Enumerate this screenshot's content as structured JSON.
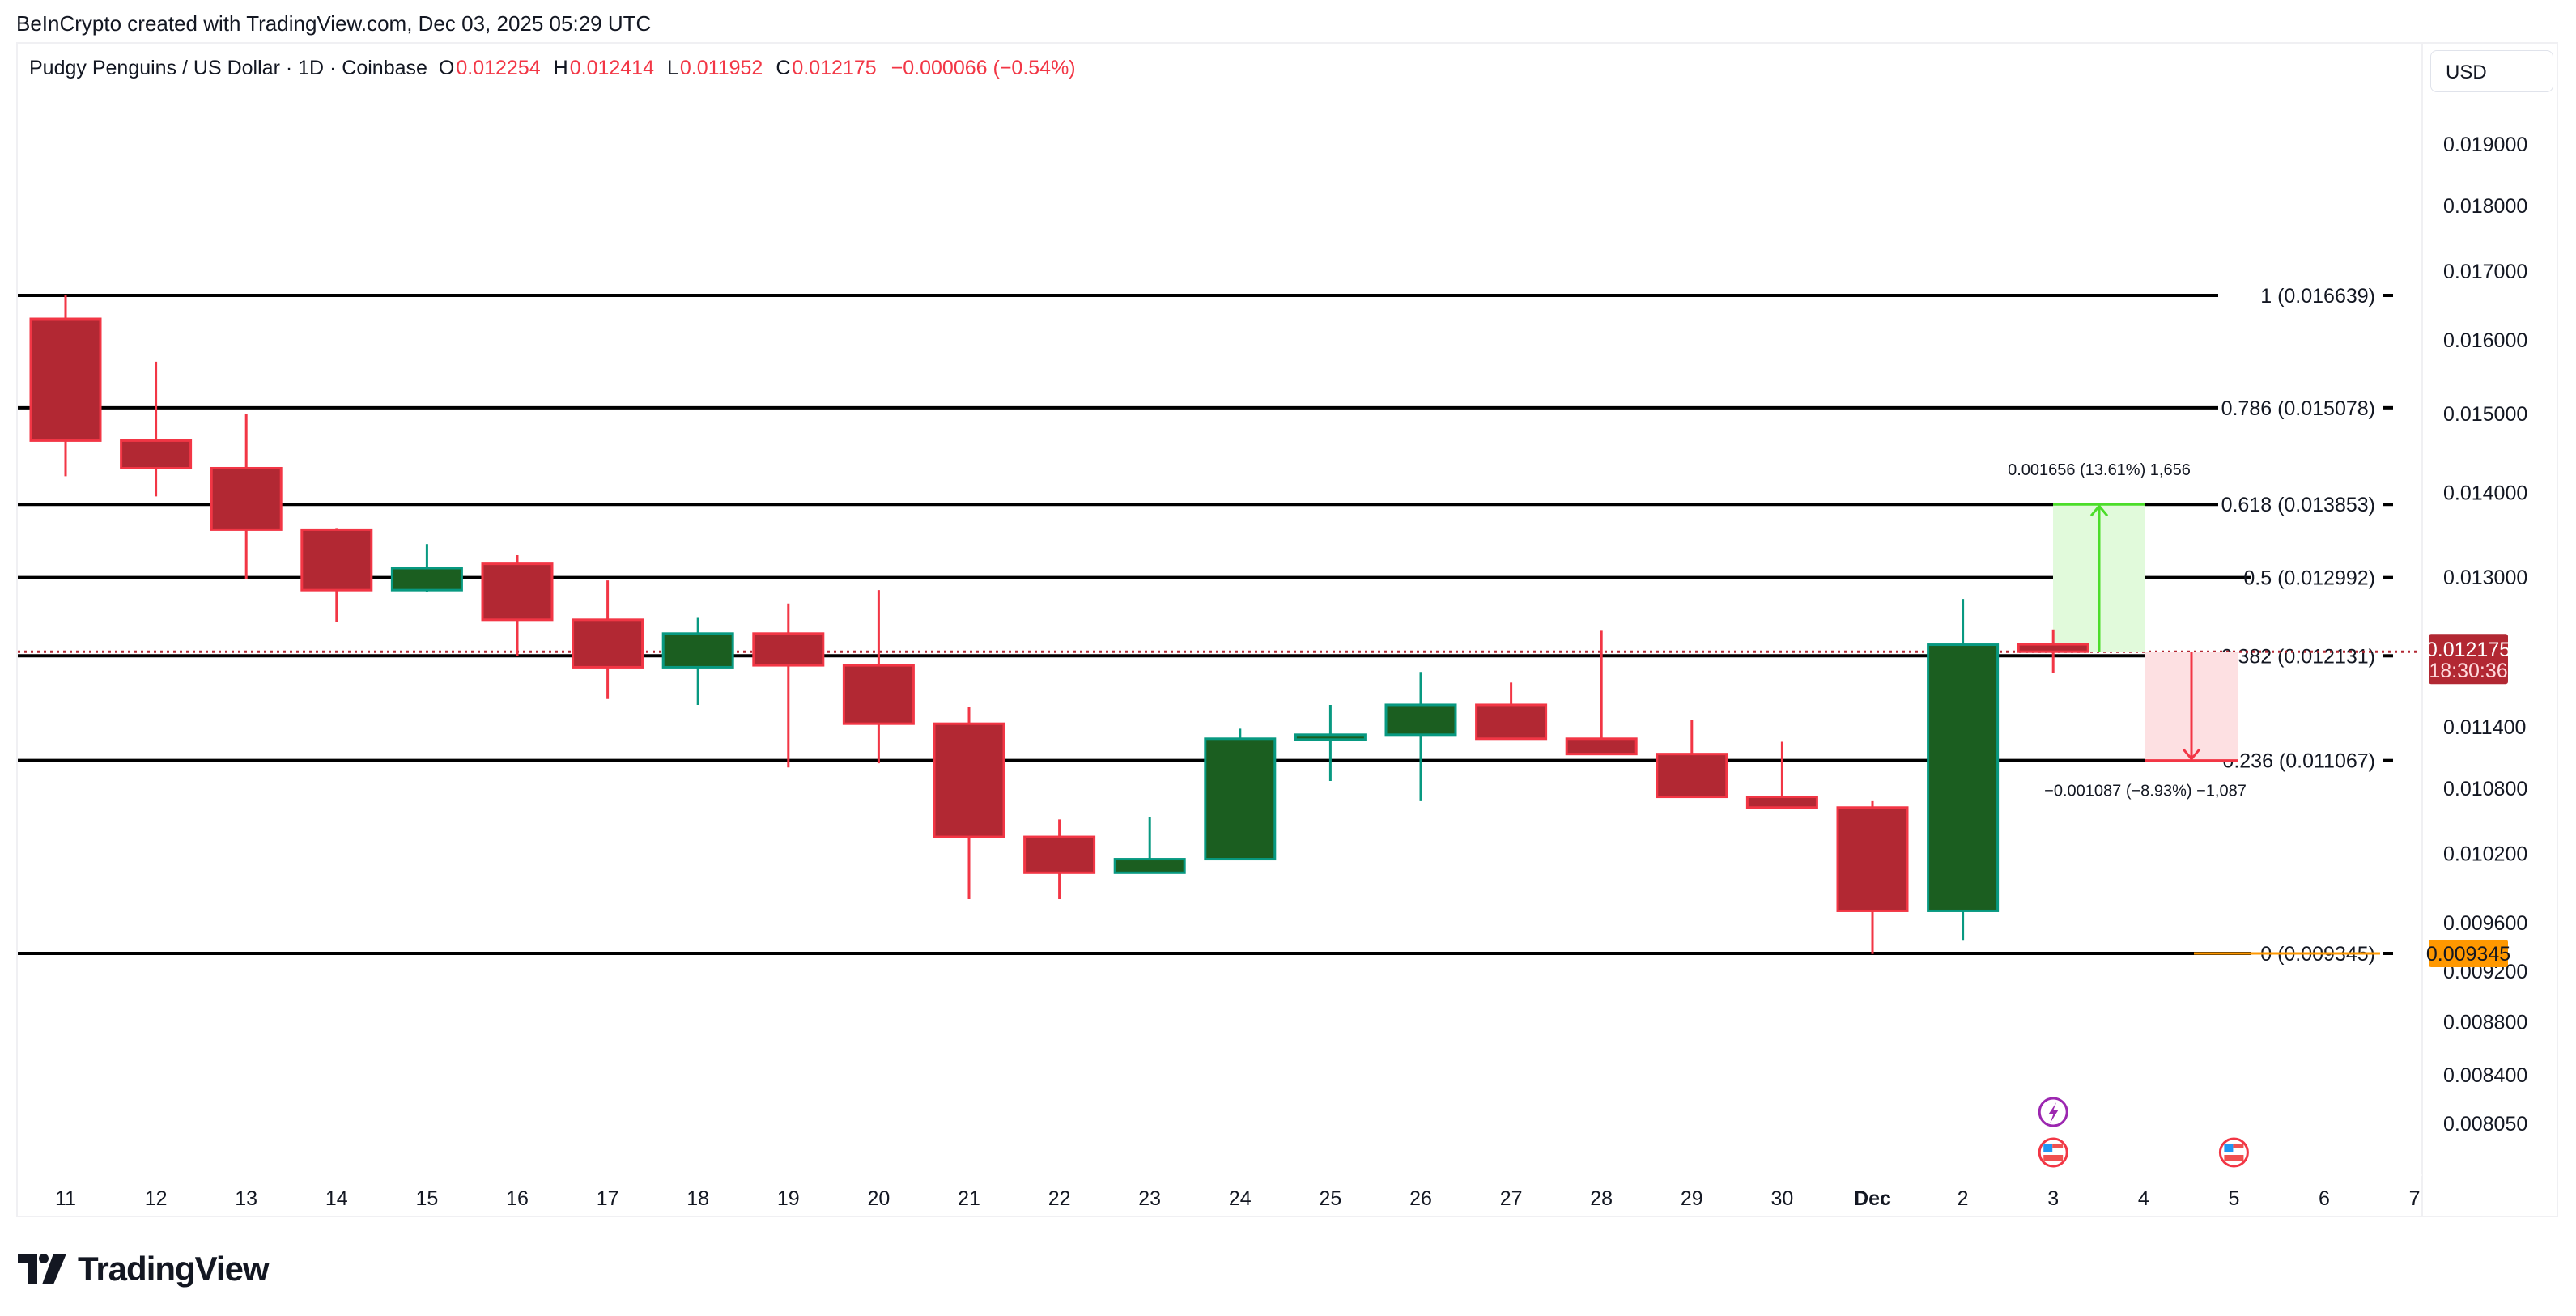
{
  "header": {
    "credit": "BeInCrypto created with TradingView.com, Dec 03, 2025 05:29 UTC"
  },
  "legend": {
    "symbol": "Pudgy Penguins / US Dollar · 1D · Coinbase",
    "open_label": "O",
    "open": "0.012254",
    "high_label": "H",
    "high": "0.012414",
    "low_label": "L",
    "low": "0.011952",
    "close_label": "C",
    "close": "0.012175",
    "change": "−0.000066 (−0.54%)"
  },
  "currency_button": "USD",
  "price_axis": {
    "ticks": [
      "0.019000",
      "0.018000",
      "0.017000",
      "0.016000",
      "0.015000",
      "0.014000",
      "0.013000",
      "0.011400",
      "0.010800",
      "0.010200",
      "0.009600",
      "0.009200",
      "0.008800",
      "0.008400",
      "0.008050"
    ],
    "last_price": "0.012175",
    "countdown": "18:30:36",
    "fib0_badge": "0.009345"
  },
  "time_axis": {
    "labels": [
      "11",
      "12",
      "13",
      "14",
      "15",
      "16",
      "17",
      "18",
      "19",
      "20",
      "21",
      "22",
      "23",
      "24",
      "25",
      "26",
      "27",
      "28",
      "29",
      "30",
      "Dec",
      "2",
      "3",
      "4",
      "5",
      "6",
      "7"
    ]
  },
  "fib_levels": [
    {
      "label": "1 (0.016639)",
      "ratio": 1,
      "price": 0.016639
    },
    {
      "label": "0.786 (0.015078)",
      "ratio": 0.786,
      "price": 0.015078
    },
    {
      "label": "0.618 (0.013853)",
      "ratio": 0.618,
      "price": 0.013853
    },
    {
      "label": "0.5 (0.012992)",
      "ratio": 0.5,
      "price": 0.012992
    },
    {
      "label": "0.382 (0.012131)",
      "ratio": 0.382,
      "price": 0.012131
    },
    {
      "label": "0.236 (0.011067)",
      "ratio": 0.236,
      "price": 0.011067
    },
    {
      "label": "0 (0.009345)",
      "ratio": 0,
      "price": 0.009345
    }
  ],
  "measures": {
    "up": "0.001656 (13.61%) 1,656",
    "down": "−0.001087 (−8.93%) −1,087"
  },
  "colors": {
    "up_body": "#1b5e20",
    "up_border": "#089981",
    "down_body": "#b22833",
    "down_border": "#f23645",
    "fib_line": "#000000",
    "last_price_bg": "#b22833",
    "fib0_bg": "#ff9800",
    "measure_up_fill": "#e1fadb",
    "measure_up_line": "#4cdd2a",
    "measure_down_fill": "#fde0e2",
    "measure_down_line": "#f23645"
  },
  "logo": "TradingView",
  "chart_data": {
    "type": "candlestick",
    "title": "Pudgy Penguins / US Dollar · 1D · Coinbase",
    "xlabel": "",
    "ylabel": "USD",
    "ylim": [
      0.0079,
      0.0195
    ],
    "scale": "log",
    "categories": [
      "Nov 11",
      "Nov 12",
      "Nov 13",
      "Nov 14",
      "Nov 15",
      "Nov 16",
      "Nov 17",
      "Nov 18",
      "Nov 19",
      "Nov 20",
      "Nov 21",
      "Nov 22",
      "Nov 23",
      "Nov 24",
      "Nov 25",
      "Nov 26",
      "Nov 27",
      "Nov 28",
      "Nov 29",
      "Nov 30",
      "Dec 1",
      "Dec 2",
      "Dec 3"
    ],
    "series": [
      {
        "name": "open",
        "values": [
          0.0163,
          0.01465,
          0.0143,
          0.01355,
          0.01285,
          0.01315,
          0.01252,
          0.01201,
          0.01237,
          0.01203,
          0.01143,
          0.01035,
          0.01003,
          0.01015,
          0.01128,
          0.01132,
          0.01162,
          0.01128,
          0.01113,
          0.01072,
          0.01062,
          0.0097,
          0.012254
        ]
      },
      {
        "name": "high",
        "values": [
          0.01664,
          0.0157,
          0.015,
          0.01357,
          0.01338,
          0.01325,
          0.01296,
          0.01255,
          0.0127,
          0.01285,
          0.0116,
          0.01051,
          0.01053,
          0.01138,
          0.01162,
          0.01196,
          0.01185,
          0.0124,
          0.01147,
          0.01125,
          0.01068,
          0.01275,
          0.012414
        ]
      },
      {
        "name": "low",
        "values": [
          0.0142,
          0.01395,
          0.01298,
          0.0125,
          0.01283,
          0.01213,
          0.01168,
          0.01162,
          0.011,
          0.01104,
          0.0098,
          0.0098,
          0.01007,
          0.01018,
          0.01087,
          0.01068,
          0.01142,
          0.01115,
          0.01072,
          0.01068,
          0.00934,
          0.00945,
          0.011952
        ]
      },
      {
        "name": "close",
        "values": [
          0.01465,
          0.0143,
          0.01355,
          0.01285,
          0.0131,
          0.01252,
          0.01201,
          0.01237,
          0.01203,
          0.01143,
          0.01035,
          0.01003,
          0.01015,
          0.01128,
          0.01132,
          0.01162,
          0.01128,
          0.01113,
          0.01072,
          0.01062,
          0.0097,
          0.01225,
          0.012175
        ]
      }
    ],
    "annotations": [
      "Fib retracement 1 (0.016639), 0.786 (0.015078), 0.618 (0.013853), 0.5 (0.012992), 0.382 (0.012131), 0.236 (0.011067), 0 (0.009345)",
      "Price range up: 0.001656 (13.61%) 1,656",
      "Price range down: −0.001087 (−8.93%) −1,087"
    ],
    "grid": false,
    "legend_position": "top-left"
  }
}
